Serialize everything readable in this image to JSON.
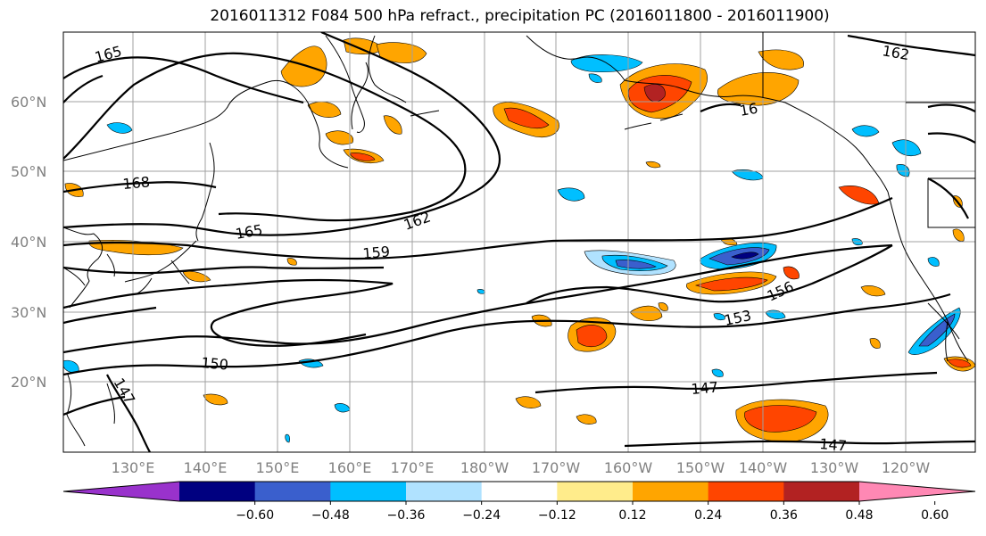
{
  "title": "2016011312 F084 500 hPa refract., precipitation PC (2016011800 - 2016011900)",
  "lat_labels": [
    "60°N",
    "50°N",
    "40°N",
    "30°N",
    "20°N"
  ],
  "lon_labels": [
    "130°E",
    "140°E",
    "150°E",
    "160°E",
    "170°E",
    "180°W",
    "170°W",
    "160°W",
    "150°W",
    "140°W",
    "130°W",
    "120°W"
  ],
  "contour_labels": [
    "165",
    "168",
    "165",
    "162",
    "159",
    "156",
    "153",
    "150",
    "147",
    "147",
    "147",
    "162",
    "16"
  ],
  "colorbar": {
    "ticks": [
      "−0.60",
      "−0.48",
      "−0.36",
      "−0.24",
      "−0.12",
      "0.12",
      "0.24",
      "0.36",
      "0.48",
      "0.60"
    ],
    "colors": [
      "#9932cc",
      "#000080",
      "#3a5fcd",
      "#00bfff",
      "#b0e2ff",
      "#ffffff",
      "#ffec8b",
      "#ffa500",
      "#ff4500",
      "#b22222",
      "#ff88b4"
    ]
  }
}
